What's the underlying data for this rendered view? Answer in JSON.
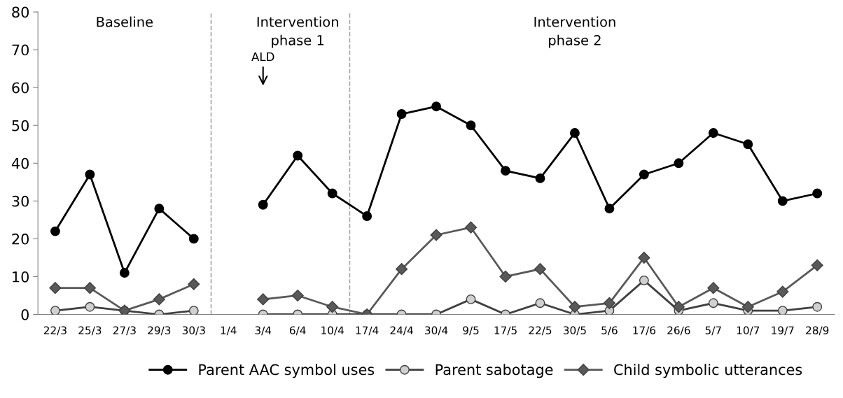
{
  "chart_data": {
    "type": "line",
    "categories": [
      "22/3",
      "25/3",
      "27/3",
      "29/3",
      "30/3",
      "1/4",
      "3/4",
      "6/4",
      "10/4",
      "17/4",
      "24/4",
      "30/4",
      "9/5",
      "17/5",
      "22/5",
      "30/5",
      "5/6",
      "17/6",
      "26/6",
      "5/7",
      "10/7",
      "19/7",
      "28/9"
    ],
    "series": [
      {
        "name": "Parent AAC symbol uses",
        "color": "#000000",
        "marker": "circle",
        "values": [
          22,
          37,
          11,
          28,
          20,
          null,
          29,
          42,
          32,
          26,
          53,
          55,
          50,
          38,
          36,
          48,
          28,
          37,
          40,
          48,
          45,
          30,
          32
        ]
      },
      {
        "name": "Parent sabotage",
        "color": "#d0d0d0",
        "marker": "circle",
        "values": [
          1,
          2,
          1,
          0,
          1,
          null,
          0,
          0,
          0,
          0,
          0,
          0,
          4,
          0,
          3,
          0,
          1,
          9,
          1,
          3,
          1,
          1,
          2
        ]
      },
      {
        "name": "Child symbolic utterances",
        "color": "#595959",
        "marker": "diamond",
        "values": [
          7,
          7,
          1,
          4,
          8,
          null,
          4,
          5,
          2,
          0,
          12,
          21,
          23,
          10,
          12,
          2,
          3,
          15,
          2,
          7,
          2,
          6,
          13
        ]
      }
    ],
    "ylim": [
      0,
      80
    ],
    "yticks": [
      0,
      10,
      20,
      30,
      40,
      50,
      60,
      70,
      80
    ],
    "annotations": [
      "Baseline",
      "Intervention\nphase 1",
      "Intervention\nphase 2",
      "ALD"
    ],
    "grid": false,
    "legend": "bottom"
  }
}
